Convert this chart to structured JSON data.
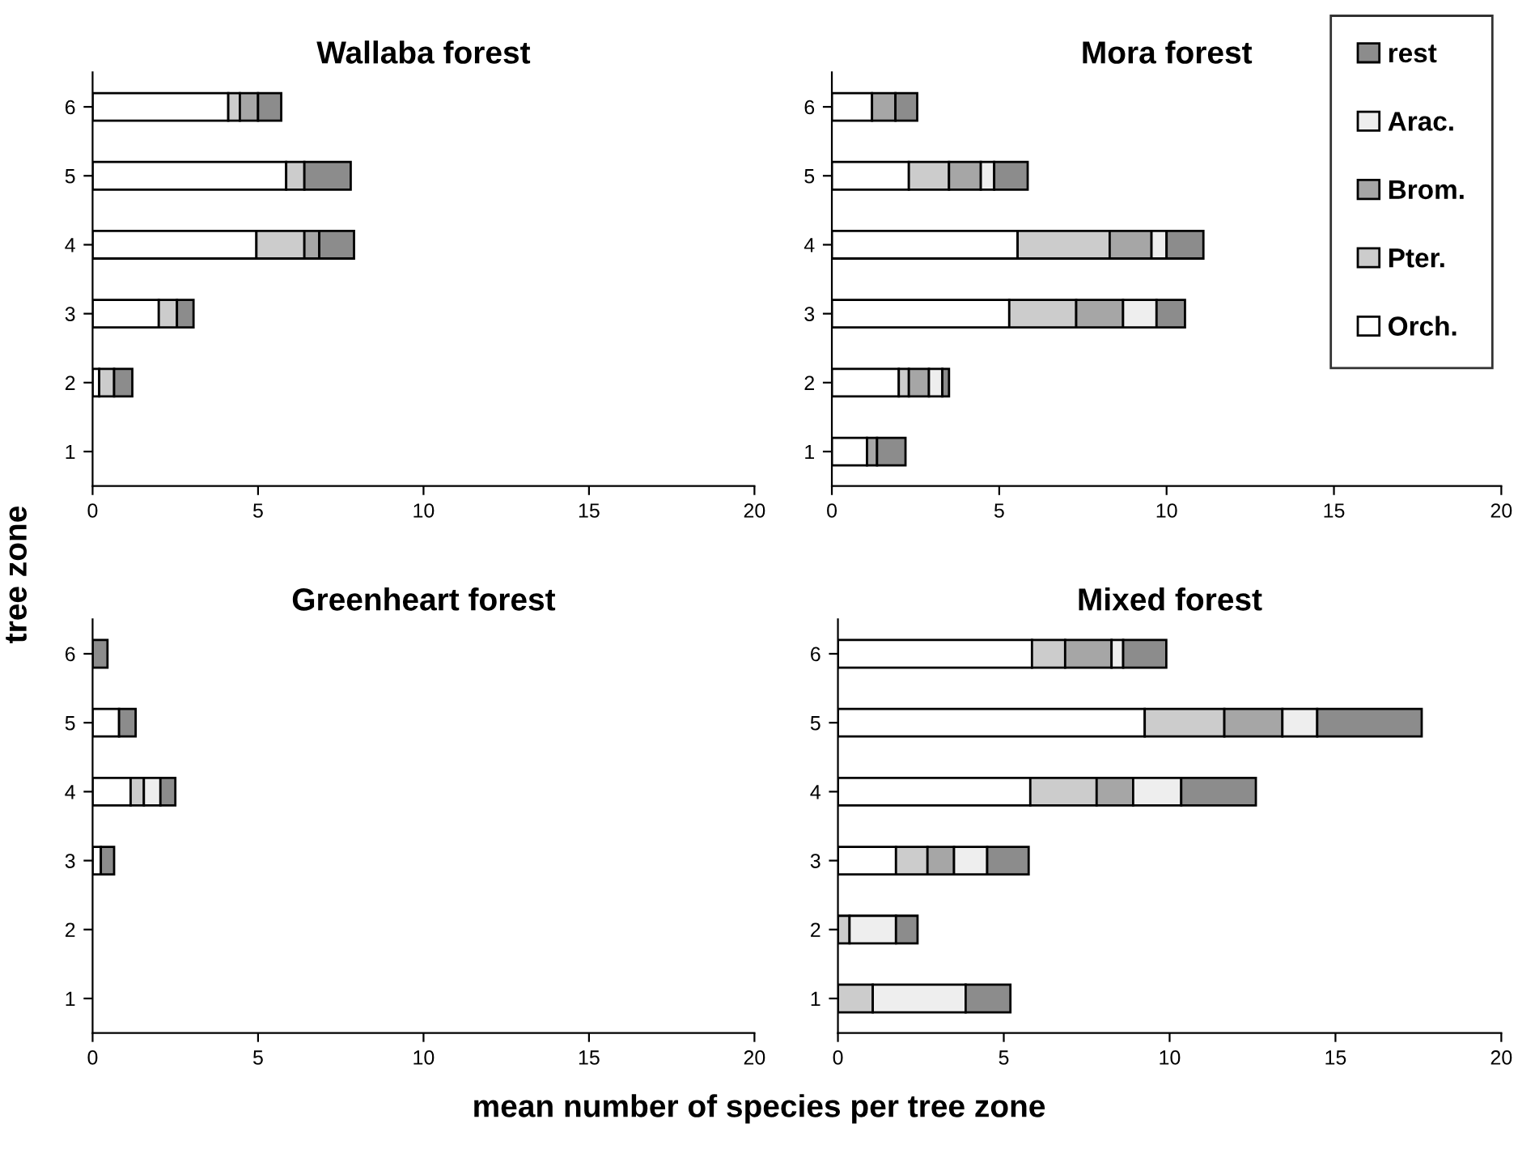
{
  "chart_data": [
    {
      "type": "bar",
      "orientation": "horizontal",
      "stacked": true,
      "title": "Wallaba forest",
      "ylabel": "tree zone",
      "xlabel": "mean number of species per tree zone",
      "categories": [
        "6",
        "5",
        "4",
        "3",
        "2",
        "1"
      ],
      "xlim": [
        0,
        20
      ],
      "xticks": [
        0,
        5,
        10,
        15,
        20
      ],
      "grid": false,
      "series": [
        {
          "color": "#ffffff",
          "values": [
            4.1,
            5.85,
            4.95,
            2.0,
            0.2,
            0
          ]
        },
        {
          "color": "#cccccc",
          "values": [
            0.35,
            0.55,
            1.45,
            0.55,
            0.45,
            0
          ]
        },
        {
          "color": "#a6a6a6",
          "values": [
            0.55,
            0,
            0.45,
            0,
            0,
            0
          ]
        },
        {
          "color": "#ececec",
          "values": [
            0,
            0,
            0,
            0,
            0,
            0
          ]
        },
        {
          "color": "#8c8c8c",
          "values": [
            0.7,
            1.4,
            1.05,
            0.5,
            0.55,
            0
          ]
        }
      ]
    },
    {
      "type": "bar",
      "orientation": "horizontal",
      "stacked": true,
      "title": "Mora forest",
      "categories": [
        "6",
        "5",
        "4",
        "3",
        "2",
        "1"
      ],
      "xlim": [
        0,
        20
      ],
      "xticks": [
        0,
        5,
        10,
        15,
        20
      ],
      "grid": false,
      "legend": "top right",
      "series": [
        {
          "name": "Orch.",
          "color": "#ffffff",
          "values": [
            1.2,
            2.3,
            5.55,
            5.3,
            2.0,
            1.05
          ]
        },
        {
          "name": "Pter.",
          "color": "#cccccc",
          "values": [
            0,
            1.2,
            2.75,
            2.0,
            0.3,
            0
          ]
        },
        {
          "name": "Brom.",
          "color": "#a6a6a6",
          "values": [
            0.7,
            0.95,
            1.25,
            1.4,
            0.6,
            0.3
          ]
        },
        {
          "name": "Arac.",
          "color": "#eeeeee",
          "values": [
            0,
            0.4,
            0.45,
            1.0,
            0.4,
            0
          ]
        },
        {
          "name": "rest",
          "color": "#8c8c8c",
          "values": [
            0.65,
            1.0,
            1.1,
            0.85,
            0.2,
            0.85
          ]
        }
      ]
    },
    {
      "type": "bar",
      "orientation": "horizontal",
      "stacked": true,
      "title": "Greenheart forest",
      "categories": [
        "6",
        "5",
        "4",
        "3",
        "2",
        "1"
      ],
      "xlim": [
        0,
        20
      ],
      "xticks": [
        0,
        5,
        10,
        15,
        20
      ],
      "grid": false,
      "series": [
        {
          "color": "#ffffff",
          "values": [
            0,
            0.8,
            1.15,
            0.25,
            0,
            0
          ]
        },
        {
          "color": "#cccccc",
          "values": [
            0,
            0,
            0.4,
            0,
            0,
            0
          ]
        },
        {
          "color": "#a6a6a6",
          "values": [
            0,
            0,
            0,
            0,
            0,
            0
          ]
        },
        {
          "color": "#eeeeee",
          "values": [
            0,
            0,
            0.5,
            0,
            0,
            0
          ]
        },
        {
          "color": "#8c8c8c",
          "values": [
            0.45,
            0.5,
            0.45,
            0.4,
            0,
            0
          ]
        }
      ]
    },
    {
      "type": "bar",
      "orientation": "horizontal",
      "stacked": true,
      "title": "Mixed forest",
      "categories": [
        "6",
        "5",
        "4",
        "3",
        "2",
        "1"
      ],
      "xlim": [
        0,
        20
      ],
      "xticks": [
        0,
        5,
        10,
        15,
        20
      ],
      "grid": false,
      "series": [
        {
          "color": "#ffffff",
          "values": [
            5.85,
            9.25,
            5.8,
            1.75,
            0,
            null
          ]
        },
        {
          "color": "#cccccc",
          "values": [
            1.0,
            2.4,
            2.0,
            0.95,
            0.35,
            1.05
          ]
        },
        {
          "color": "#a6a6a6",
          "values": [
            1.4,
            1.75,
            1.1,
            0.8,
            0,
            0
          ]
        },
        {
          "color": "#eeeeee",
          "values": [
            0.35,
            1.05,
            1.45,
            1.0,
            1.4,
            2.8
          ]
        },
        {
          "color": "#8c8c8c",
          "values": [
            1.3,
            3.15,
            2.25,
            1.25,
            0.65,
            1.35
          ]
        }
      ]
    }
  ]
}
